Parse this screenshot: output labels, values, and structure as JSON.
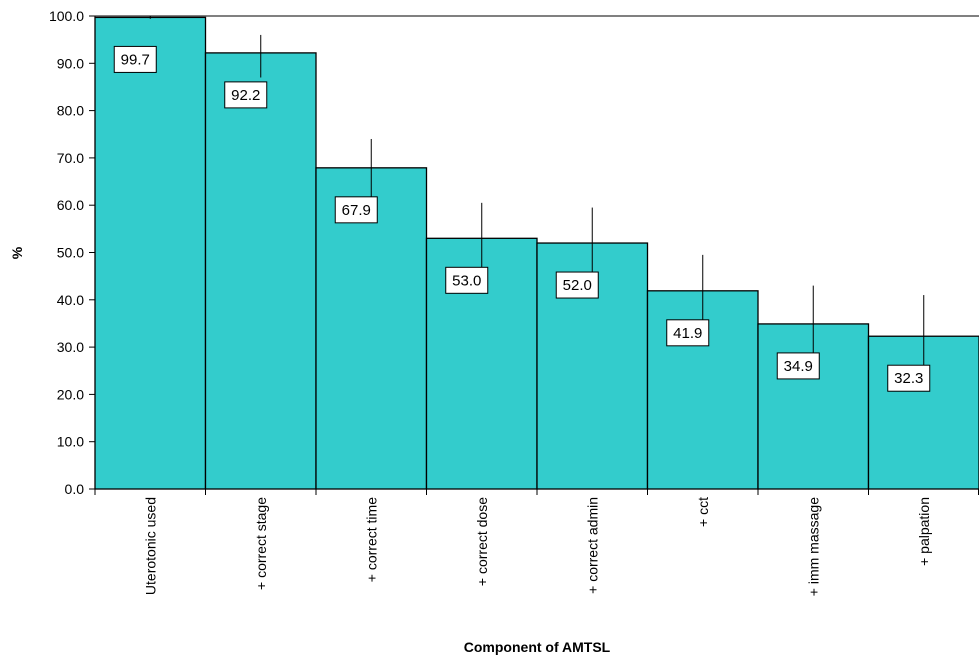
{
  "chart_data": {
    "type": "bar",
    "title": "",
    "xlabel": "Component of AMTSL",
    "ylabel": "%",
    "ylim": [
      0,
      100
    ],
    "ytick_step": 10,
    "ytick_labels": [
      "0.0",
      "10.0",
      "20.0",
      "30.0",
      "40.0",
      "50.0",
      "60.0",
      "70.0",
      "80.0",
      "90.0",
      "100.0"
    ],
    "categories": [
      "Uterotonic used",
      "+ correct stage",
      "+ correct time",
      "+ correct dose",
      "+ correct admin",
      "+ cct",
      "+ imm massage",
      "+ palpation"
    ],
    "values": [
      99.7,
      92.2,
      67.9,
      53.0,
      52.0,
      41.9,
      34.9,
      32.3
    ],
    "value_labels": [
      "99.7",
      "92.2",
      "67.9",
      "53.0",
      "52.0",
      "41.9",
      "34.9",
      "32.3"
    ],
    "error_low": [
      99.4,
      87.0,
      60.5,
      46.0,
      44.5,
      33.0,
      26.0,
      23.0
    ],
    "error_high": [
      100.0,
      96.0,
      74.0,
      60.5,
      59.5,
      49.5,
      43.0,
      41.0
    ],
    "bar_color": "#33CCCC",
    "grid": false,
    "legend": "none"
  }
}
